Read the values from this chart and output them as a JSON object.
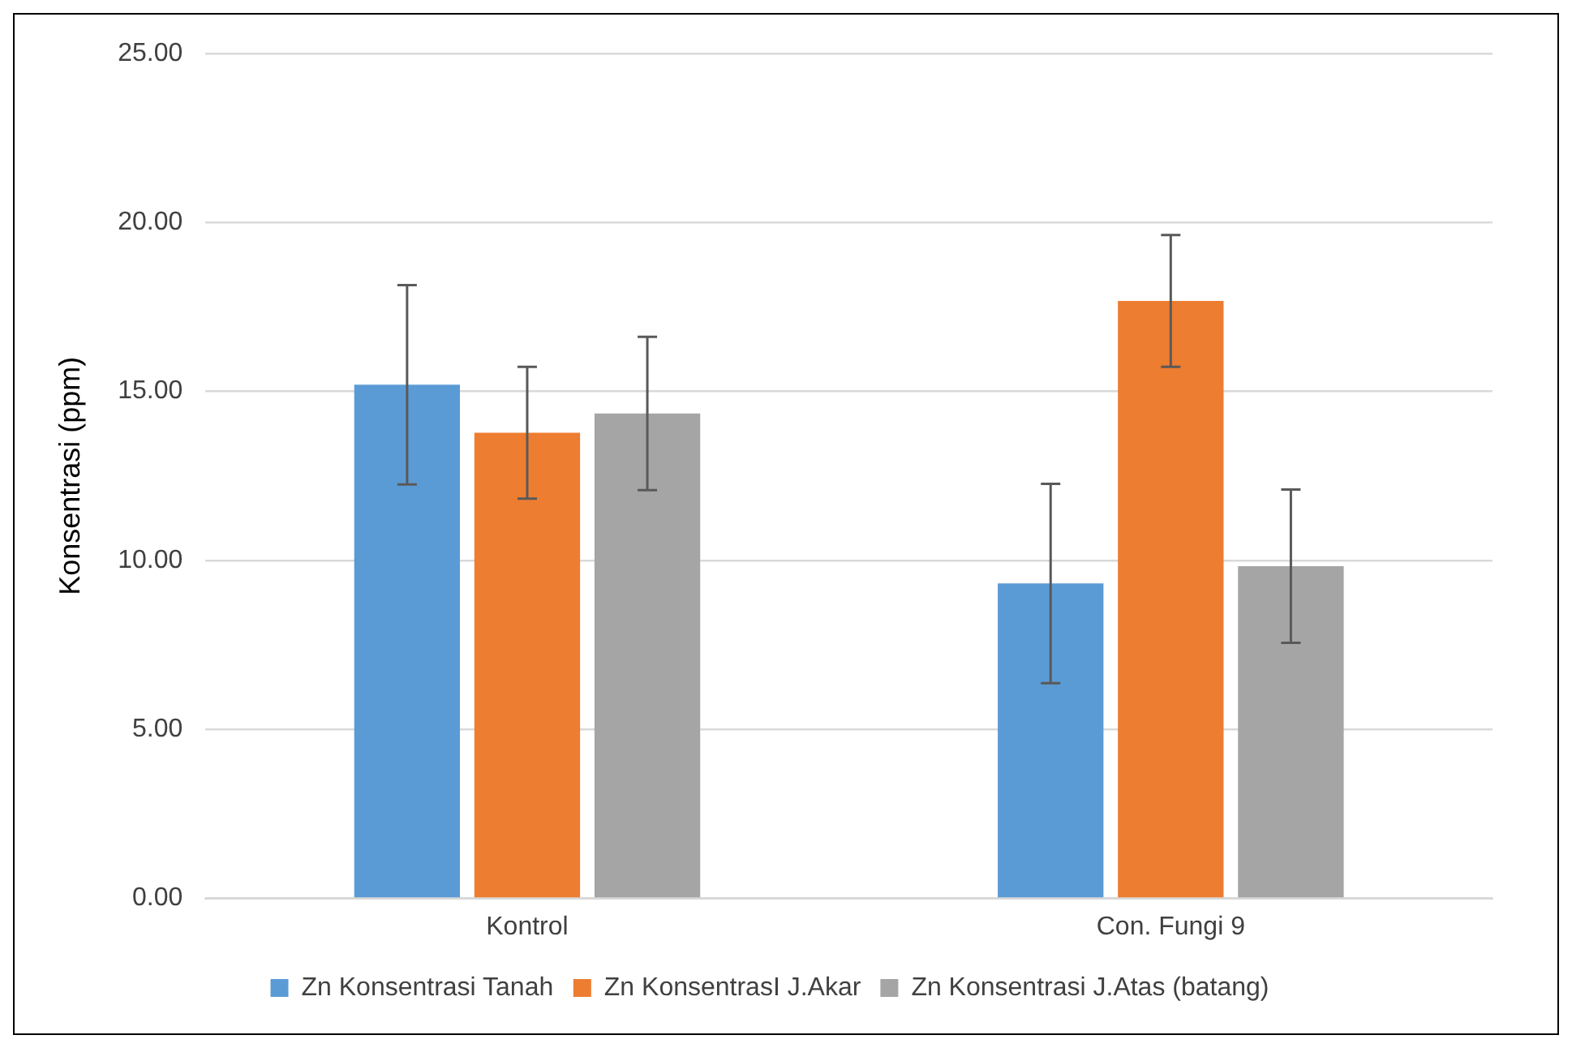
{
  "chart_data": {
    "type": "bar",
    "ylabel": "Konsentrasi (ppm)",
    "categories": [
      "Kontrol",
      "Con. Fungi 9"
    ],
    "series": [
      {
        "name": "Zn Konsentrasi Tanah",
        "color": "#5b9bd5",
        "values": [
          15.2,
          9.32
        ],
        "errors": [
          2.95,
          2.95
        ]
      },
      {
        "name": "Zn KonsentrasI J.Akar",
        "color": "#ed7d31",
        "values": [
          13.78,
          17.68
        ],
        "errors": [
          1.95,
          1.95
        ]
      },
      {
        "name": "Zn Konsentrasi J.Atas (batang)",
        "color": "#a5a5a5",
        "values": [
          14.35,
          9.83
        ],
        "errors": [
          2.27,
          2.27
        ]
      }
    ],
    "ylim": [
      0,
      25
    ],
    "yticks": [
      {
        "value": 0,
        "label": "0.00"
      },
      {
        "value": 5,
        "label": "5.00"
      },
      {
        "value": 10,
        "label": "10.00"
      },
      {
        "value": 15,
        "label": "15.00"
      },
      {
        "value": 20,
        "label": "20.00"
      },
      {
        "value": 25,
        "label": "25.00"
      }
    ],
    "grid": "y",
    "legend": "bottom"
  }
}
